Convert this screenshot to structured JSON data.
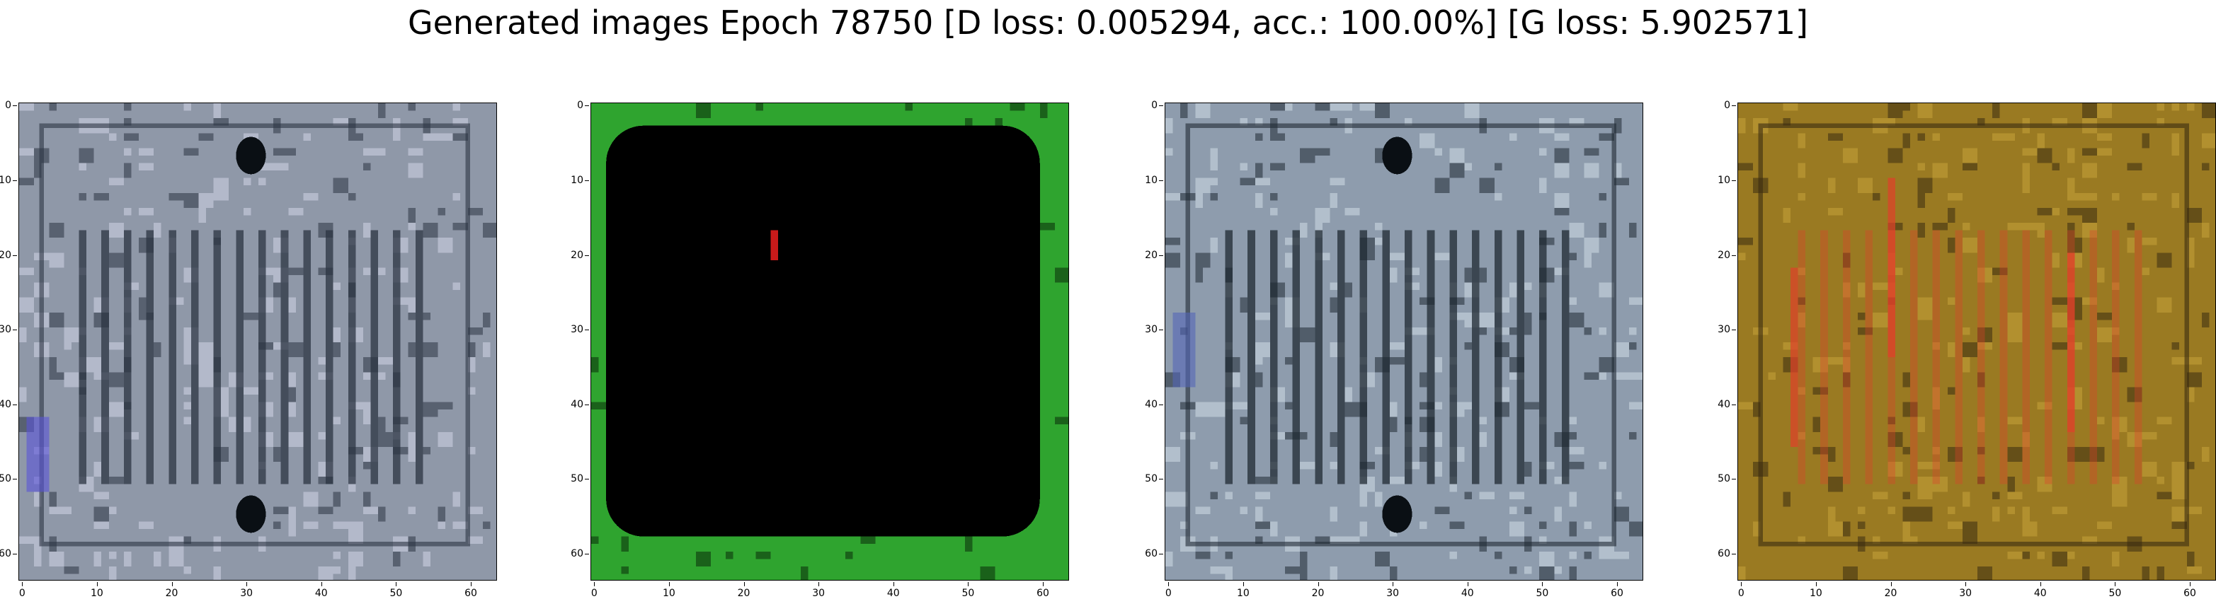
{
  "title": "Generated images Epoch 78750 [D loss: 0.005294, acc.: 100.00%] [G loss: 5.902571]",
  "panels": [
    {
      "name": "generated-image-1",
      "colors": {
        "base": "#8f98a8",
        "dark": "#2b3442",
        "light": "#d2d6e6",
        "accent": "#5a54d8"
      }
    },
    {
      "name": "generated-image-2",
      "colors": {
        "base": "#000000",
        "dark": "#0a2a0a",
        "light": "#2fa42f",
        "accent": "#c81a1a"
      }
    },
    {
      "name": "generated-image-3",
      "colors": {
        "base": "#8e9cad",
        "dark": "#1f2a33",
        "light": "#cfdce6",
        "accent": "#5466b8"
      }
    },
    {
      "name": "generated-image-4",
      "colors": {
        "base": "#9a7a22",
        "dark": "#3a2c10",
        "light": "#c7a23a",
        "accent": "#e0402a"
      }
    }
  ],
  "axis": {
    "xticks": [
      "0",
      "10",
      "20",
      "30",
      "40",
      "50",
      "60"
    ],
    "yticks": [
      "0",
      "10",
      "20",
      "30",
      "40",
      "50",
      "60"
    ]
  }
}
